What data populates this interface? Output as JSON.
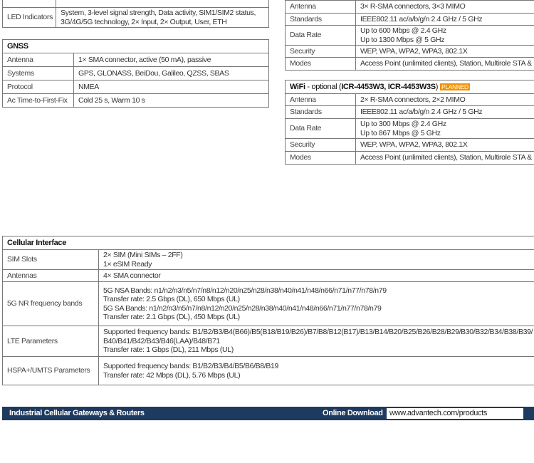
{
  "left_top": {
    "rows": [
      {
        "label": "LED Indicators",
        "value": [
          "System, 3-level signal strength, Data activity, SIM1/SIM2 status,",
          "3G/4G/5G technology, 2× Input, 2× Output, User, ETH"
        ]
      }
    ]
  },
  "gnss": {
    "title": "GNSS",
    "rows": [
      {
        "label": "Antenna",
        "value": "1× SMA connector, active (50 mA), passive"
      },
      {
        "label": "Systems",
        "value": "GPS, GLONASS, BeiDou, Galileo, QZSS, SBAS"
      },
      {
        "label": "Protocol",
        "value": "NMEA"
      },
      {
        "label": "Ac Time-to-First-Fix",
        "value": "Cold 25 s, Warm 10 s"
      }
    ]
  },
  "wifi1": {
    "rows": [
      {
        "label": "Antenna",
        "value": [
          "3× R-SMA connectors, 3×3 MIMO"
        ]
      },
      {
        "label": "Standards",
        "value": [
          "IEEE802.11 ac/a/b/g/n 2.4 GHz / 5 GHz"
        ]
      },
      {
        "label": "Data Rate",
        "value": [
          "Up to 600 Mbps @ 2.4 GHz",
          "Up to 1300 Mbps @ 5 GHz"
        ]
      },
      {
        "label": "Security",
        "value": [
          "WEP, WPA, WPA2, WPA3, 802.1X"
        ]
      },
      {
        "label": "Modes",
        "value": [
          "Access Point (unlimited clients), Station, Multirole STA &"
        ]
      }
    ]
  },
  "wifi2": {
    "title_a": "WiFi",
    "title_b": " - optional (",
    "title_c": "ICR-4453W3, ICR-4453W3S",
    "title_d": ")",
    "badge": "PLANNED",
    "rows": [
      {
        "label": "Antenna",
        "value": [
          "2× R-SMA connectors, 2×2 MIMO"
        ]
      },
      {
        "label": "Standards",
        "value": [
          "IEEE802.11 ac/a/b/g/n 2.4 GHz / 5 GHz"
        ]
      },
      {
        "label": "Data Rate",
        "value": [
          "Up to 300 Mbps @ 2.4 GHz",
          "Up to 867 Mbps @ 5 GHz"
        ]
      },
      {
        "label": "Security",
        "value": [
          "WEP, WPA, WPA2, WPA3, 802.1X"
        ]
      },
      {
        "label": "Modes",
        "value": [
          "Access Point (unlimited clients), Station, Multirole STA &"
        ]
      }
    ]
  },
  "cellular": {
    "title": "Cellular Interface",
    "rows": [
      {
        "label": "SIM Slots",
        "value": [
          "2× SIM (Mini SIMs – 2FF)",
          "1× eSIM Ready"
        ]
      },
      {
        "label": "Antennas",
        "value": [
          "4× SMA connector"
        ]
      },
      {
        "label": "5G NR frequency bands",
        "value": [
          "5G NSA Bands: n1/n2/n3/n5/n7/n8/n12/n20/n25/n28/n38/n40/n41/n48/n66/n71/n77/n78/n79",
          "Transfer rate: 2.5 Gbps (DL), 650 Mbps (UL)",
          "5G SA Bands: n1/n2/n3/n5/n7/n8/n12/n20/n25/n28/n38/n40/n41/n48/n66/n71/n77/n78/n79",
          "Transfer rate: 2.1 Gbps (DL), 450 Mbps (UL)"
        ]
      },
      {
        "label": "LTE Parameters",
        "value": [
          "Supported frequency bands: B1/B2/B3/B4(B66)/B5(B18/B19/B26)/B7/B8/B12(B17)/B13/B14/B20/B25/B26/B28/B29/B30/B32/B34/B38/B39/",
          "B40/B41/B42/B43/B46(LAA)/B48/B71",
          "Transfer rate: 1 Gbps (DL), 211 Mbps (UL)"
        ]
      },
      {
        "label": "HSPA+/UMTS Parameters",
        "value": [
          "Supported frequency bands: B1/B2/B3/B4/B5/B6/B8/B19",
          "Transfer rate: 42 Mbps (DL), 5.76 Mbps (UL)"
        ]
      }
    ]
  },
  "footer": {
    "title": "Industrial Cellular Gateways & Routers",
    "download_label": "Online Download",
    "url": "www.advantech.com/products"
  },
  "colors": {
    "footer_bg": "#1e3a5f",
    "badge": "#f39200"
  }
}
